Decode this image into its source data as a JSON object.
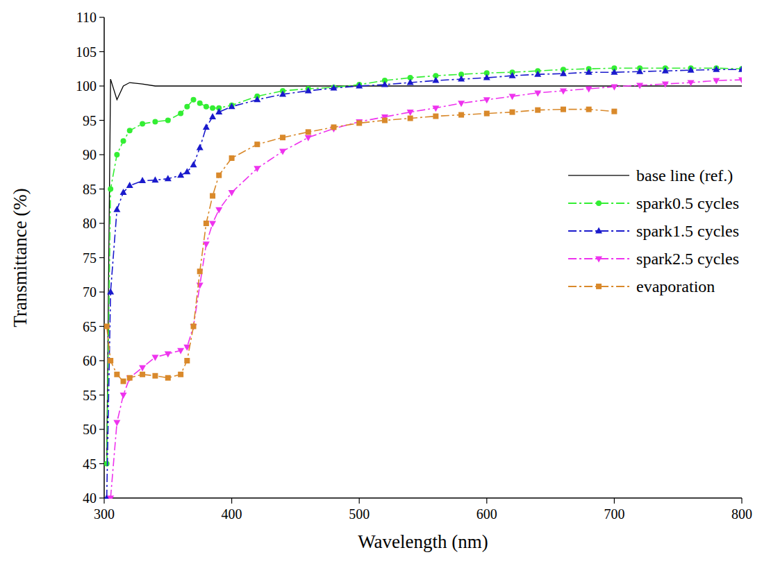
{
  "chart_data": {
    "type": "line",
    "x_label": "Wavelength (nm)",
    "y_label": "Transmittance (%)",
    "x": [
      302,
      305,
      310,
      315,
      320,
      330,
      340,
      350,
      360,
      365,
      370,
      375,
      380,
      385,
      390,
      400,
      420,
      440,
      460,
      480,
      500,
      520,
      540,
      560,
      580,
      600,
      620,
      640,
      660,
      680,
      700,
      720,
      740,
      760,
      780,
      800
    ],
    "xlim": [
      300,
      800
    ],
    "xticks": [
      300,
      400,
      500,
      600,
      700,
      800
    ],
    "ylim": [
      40,
      110
    ],
    "yticks": [
      40,
      45,
      50,
      55,
      60,
      65,
      70,
      75,
      80,
      85,
      90,
      95,
      100,
      105,
      110
    ],
    "grid": false,
    "legend": "upper right",
    "series": [
      {
        "name": "base line (ref.)",
        "color": "#000000",
        "marker": "none",
        "line_style": "solid",
        "values": [
          45,
          101,
          98,
          100,
          100.5,
          100.3,
          100,
          100,
          100,
          100,
          100,
          100,
          100,
          100,
          100,
          100,
          100,
          100,
          100,
          100,
          100,
          100,
          100,
          100,
          100,
          100,
          100,
          100,
          100,
          100,
          100,
          100,
          100,
          100,
          100,
          100
        ]
      },
      {
        "name": "spark0.5 cycles",
        "color": "#33ee33",
        "marker": "circle",
        "line_style": "dash_dot",
        "values": [
          45,
          85,
          90,
          92,
          93.5,
          94.5,
          94.8,
          95,
          96,
          97,
          98,
          97.5,
          97,
          96.8,
          96.8,
          97.2,
          98.5,
          99.3,
          99.6,
          99.8,
          100.2,
          100.8,
          101.2,
          101.5,
          101.7,
          101.9,
          102,
          102.2,
          102.4,
          102.5,
          102.6,
          102.6,
          102.6,
          102.6,
          102.6,
          102.5
        ]
      },
      {
        "name": "spark1.5 cycles",
        "color": "#1a1acc",
        "marker": "triangle-up",
        "line_style": "dash_dot",
        "values": [
          40,
          70,
          82,
          84.5,
          85.5,
          86.2,
          86.3,
          86.5,
          87,
          87.5,
          88.5,
          91,
          94,
          95.5,
          96.2,
          97,
          98,
          98.8,
          99.3,
          99.7,
          100,
          100.2,
          100.5,
          100.8,
          101,
          101.2,
          101.5,
          101.7,
          101.8,
          102,
          102,
          102.1,
          102.2,
          102.3,
          102.4,
          102.4
        ]
      },
      {
        "name": "spark2.5 cycles",
        "color": "#ee33ee",
        "marker": "triangle-down",
        "line_style": "dash_dot",
        "values": [
          null,
          40,
          51,
          55,
          57.5,
          59,
          60.5,
          61,
          61.5,
          62,
          65,
          71,
          77,
          80,
          82,
          84.5,
          88,
          90.5,
          92.5,
          93.8,
          94.8,
          95.5,
          96.2,
          96.8,
          97.5,
          98,
          98.5,
          99,
          99.3,
          99.6,
          99.9,
          100.1,
          100.3,
          100.5,
          100.8,
          100.9
        ]
      },
      {
        "name": "evaporation",
        "color": "#d9892b",
        "marker": "square",
        "line_style": "dash_dot",
        "values": [
          65,
          60,
          58,
          57,
          57.5,
          58,
          57.8,
          57.5,
          58,
          60,
          65,
          73,
          80,
          84,
          87,
          89.5,
          91.5,
          92.5,
          93.3,
          94,
          94.6,
          95,
          95.3,
          95.6,
          95.8,
          96,
          96.2,
          96.5,
          96.6,
          96.6,
          96.3,
          null,
          null,
          null,
          null,
          null
        ]
      }
    ]
  }
}
